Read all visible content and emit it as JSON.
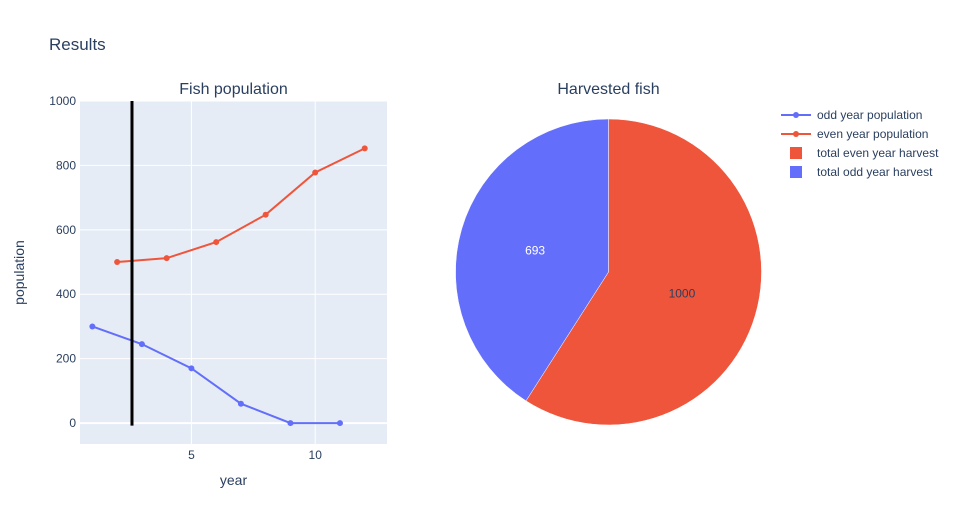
{
  "figure": {
    "title": "Results"
  },
  "chart_data": [
    {
      "type": "line",
      "title": "Fish population",
      "xlabel": "year",
      "ylabel": "population",
      "xlim": [
        0.5,
        12.9
      ],
      "ylim": [
        -65,
        1000
      ],
      "xticks": [
        5,
        10
      ],
      "yticks": [
        0,
        200,
        400,
        600,
        800,
        1000
      ],
      "grid": true,
      "vline": {
        "x": 2.6,
        "color": "#000000"
      },
      "series": [
        {
          "name": "odd year population",
          "color": "#636efa",
          "x": [
            1,
            3,
            5,
            7,
            9,
            11
          ],
          "y": [
            300,
            245,
            170,
            60,
            0,
            0
          ]
        },
        {
          "name": "even year population",
          "color": "#EF553B",
          "x": [
            2,
            4,
            6,
            8,
            10,
            12
          ],
          "y": [
            500,
            512,
            562,
            647,
            778,
            853
          ]
        }
      ]
    },
    {
      "type": "pie",
      "title": "Harvested fish",
      "slices": [
        {
          "name": "total even year harvest",
          "value": 1000,
          "color": "#EF553B",
          "label": "1000",
          "label_color": "#2a3f5f"
        },
        {
          "name": "total odd year harvest",
          "value": 693,
          "color": "#636efa",
          "label": "693",
          "label_color": "#ffffff"
        }
      ]
    }
  ],
  "legend": {
    "placement": "top-right",
    "items": [
      {
        "name": "odd year population",
        "kind": "line",
        "color": "#636efa"
      },
      {
        "name": "even year population",
        "kind": "line",
        "color": "#EF553B"
      },
      {
        "name": "total even year harvest",
        "kind": "square",
        "color": "#EF553B"
      },
      {
        "name": "total odd year harvest",
        "kind": "square",
        "color": "#636efa"
      }
    ]
  }
}
